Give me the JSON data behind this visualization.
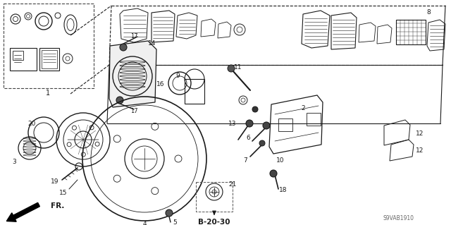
{
  "bg_color": "#ffffff",
  "line_color": "#1a1a1a",
  "fig_width": 6.4,
  "fig_height": 3.19,
  "dpi": 100,
  "ref_code": "S9VAB1910",
  "page_ref": "B-20-30"
}
